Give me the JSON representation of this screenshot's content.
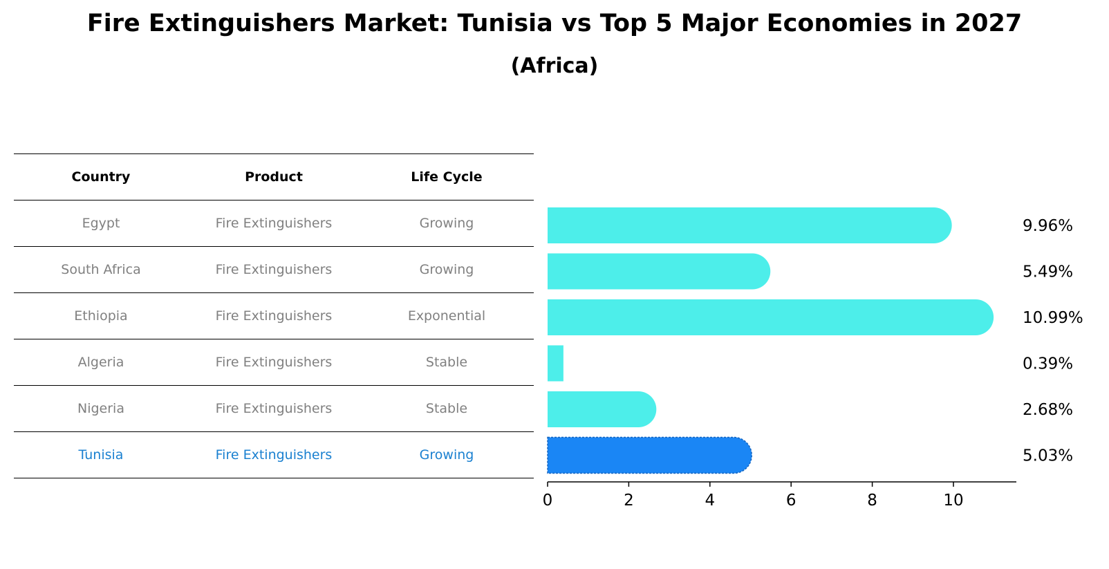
{
  "title": "Fire Extinguishers Market: Tunisia vs Top 5 Major Economies in 2027",
  "subtitle": "(Africa)",
  "table": {
    "headers": [
      "Country",
      "Product",
      "Life Cycle"
    ],
    "rows": [
      {
        "country": "Egypt",
        "product": "Fire Extinguishers",
        "life_cycle": "Growing"
      },
      {
        "country": "South Africa",
        "product": "Fire Extinguishers",
        "life_cycle": "Growing"
      },
      {
        "country": "Ethiopia",
        "product": "Fire Extinguishers",
        "life_cycle": "Exponential"
      },
      {
        "country": "Algeria",
        "product": "Fire Extinguishers",
        "life_cycle": "Stable"
      },
      {
        "country": "Nigeria",
        "product": "Fire Extinguishers",
        "life_cycle": "Stable"
      },
      {
        "country": "Tunisia",
        "product": "Fire Extinguishers",
        "life_cycle": "Growing"
      }
    ]
  },
  "chart_data": {
    "type": "bar",
    "orientation": "horizontal",
    "title": "Fire Extinguishers Market: Tunisia vs Top 5 Major Economies in 2027",
    "subtitle": "(Africa)",
    "categories": [
      "Egypt",
      "South Africa",
      "Ethiopia",
      "Algeria",
      "Nigeria",
      "Tunisia"
    ],
    "values": [
      9.96,
      5.49,
      10.99,
      0.39,
      2.68,
      5.03
    ],
    "value_labels": [
      "9.96%",
      "5.49%",
      "10.99%",
      "0.39%",
      "2.68%",
      "5.03%"
    ],
    "xlim": [
      0,
      11.5
    ],
    "xticks": [
      0,
      2,
      4,
      6,
      8,
      10
    ],
    "xtick_labels": [
      "0",
      "2",
      "4",
      "6",
      "8",
      "10"
    ],
    "highlight": "Tunisia",
    "colors": {
      "bar": "#4deeea",
      "highlight_bar": "#1a86f5",
      "highlight_text": "#1a80d0",
      "muted_text": "#808080"
    }
  }
}
